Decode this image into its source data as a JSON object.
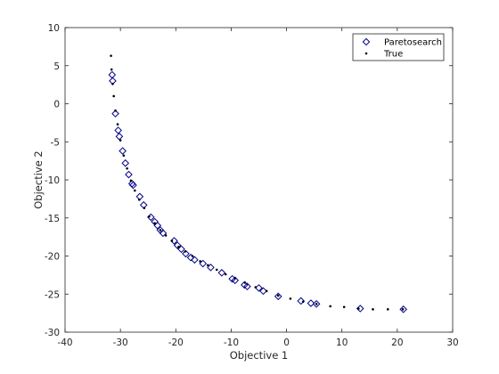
{
  "chart_data": {
    "type": "scatter",
    "title": "",
    "xlabel": "Objective 1",
    "ylabel": "Objective 2",
    "xlim": [
      -40,
      30
    ],
    "ylim": [
      -30,
      10
    ],
    "xticks": [
      -40,
      -30,
      -20,
      -10,
      0,
      10,
      20,
      30
    ],
    "yticks": [
      -30,
      -25,
      -20,
      -15,
      -10,
      -5,
      0,
      5,
      10
    ],
    "grid": false,
    "box": true,
    "legend_position": "top-right",
    "series": [
      {
        "name": "Paretosearch",
        "marker": "diamond-open",
        "color": "#00008b",
        "points": [
          [
            -31.5,
            3.8
          ],
          [
            -31.4,
            3.0
          ],
          [
            -30.9,
            -1.3
          ],
          [
            -30.4,
            -3.5
          ],
          [
            -30.2,
            -4.3
          ],
          [
            -29.6,
            -6.2
          ],
          [
            -29.1,
            -7.8
          ],
          [
            -28.5,
            -9.3
          ],
          [
            -27.9,
            -10.5
          ],
          [
            -27.7,
            -10.7
          ],
          [
            -26.5,
            -12.2
          ],
          [
            -25.8,
            -13.3
          ],
          [
            -24.5,
            -14.9
          ],
          [
            -23.8,
            -15.5
          ],
          [
            -23.3,
            -16.0
          ],
          [
            -22.8,
            -16.6
          ],
          [
            -22.3,
            -17.0
          ],
          [
            -20.3,
            -18.0
          ],
          [
            -19.7,
            -18.6
          ],
          [
            -19.0,
            -19.1
          ],
          [
            -18.2,
            -19.7
          ],
          [
            -17.3,
            -20.2
          ],
          [
            -16.6,
            -20.5
          ],
          [
            -15.1,
            -21.0
          ],
          [
            -13.7,
            -21.5
          ],
          [
            -11.7,
            -22.2
          ],
          [
            -9.8,
            -23.0
          ],
          [
            -9.3,
            -23.2
          ],
          [
            -7.6,
            -23.8
          ],
          [
            -7.1,
            -24.0
          ],
          [
            -5.0,
            -24.2
          ],
          [
            -4.2,
            -24.6
          ],
          [
            -1.5,
            -25.3
          ],
          [
            2.6,
            -25.9
          ],
          [
            4.4,
            -26.2
          ],
          [
            5.4,
            -26.3
          ],
          [
            13.3,
            -26.9
          ],
          [
            21.1,
            -27.0
          ]
        ]
      },
      {
        "name": "True",
        "marker": "dot",
        "color": "#000000",
        "points": [
          [
            -31.7,
            6.3
          ],
          [
            -31.6,
            4.5
          ],
          [
            -31.4,
            2.6
          ],
          [
            -31.2,
            1.0
          ],
          [
            -30.9,
            -0.9
          ],
          [
            -30.5,
            -2.7
          ],
          [
            -30.0,
            -4.8
          ],
          [
            -29.4,
            -6.8
          ],
          [
            -28.8,
            -8.5
          ],
          [
            -28.1,
            -10.1
          ],
          [
            -27.4,
            -11.4
          ],
          [
            -26.6,
            -12.6
          ],
          [
            -25.7,
            -13.7
          ],
          [
            -24.8,
            -14.8
          ],
          [
            -23.8,
            -15.7
          ],
          [
            -22.8,
            -16.6
          ],
          [
            -21.8,
            -17.3
          ],
          [
            -20.7,
            -18.0
          ],
          [
            -19.5,
            -18.8
          ],
          [
            -18.3,
            -19.4
          ],
          [
            -17.0,
            -20.0
          ],
          [
            -15.6,
            -20.7
          ],
          [
            -14.2,
            -21.2
          ],
          [
            -12.6,
            -21.8
          ],
          [
            -11.0,
            -22.4
          ],
          [
            -9.3,
            -22.9
          ],
          [
            -7.5,
            -23.5
          ],
          [
            -5.6,
            -24.1
          ],
          [
            -3.6,
            -24.6
          ],
          [
            -1.5,
            -25.2
          ],
          [
            0.7,
            -25.6
          ],
          [
            3.0,
            -26.0
          ],
          [
            5.4,
            -26.3
          ],
          [
            7.9,
            -26.6
          ],
          [
            10.4,
            -26.7
          ],
          [
            13.0,
            -26.9
          ],
          [
            15.6,
            -27.0
          ],
          [
            18.3,
            -27.0
          ],
          [
            21.0,
            -27.0
          ]
        ]
      }
    ]
  }
}
